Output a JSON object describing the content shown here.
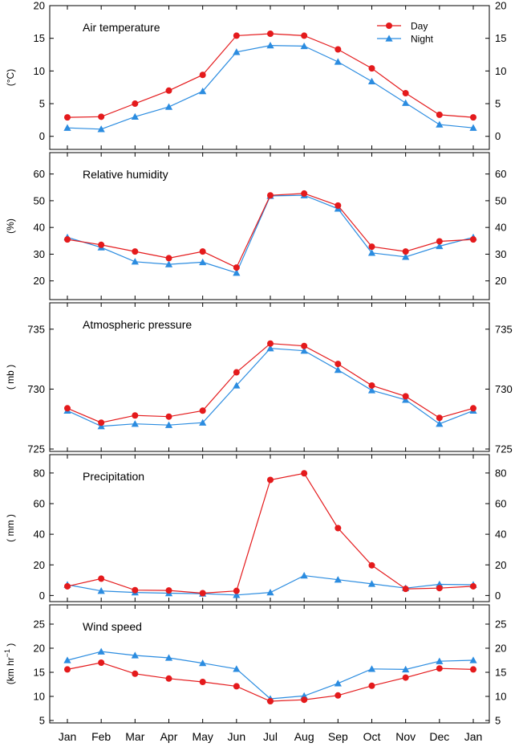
{
  "months": [
    "Jan",
    "Feb",
    "Mar",
    "Apr",
    "May",
    "Jun",
    "Jul",
    "Aug",
    "Sep",
    "Oct",
    "Nov",
    "Dec",
    "Jan"
  ],
  "legend": {
    "day": "Day",
    "night": "Night"
  },
  "colors": {
    "day": "#e41a1c",
    "night": "#2b8ce0"
  },
  "chart_data": [
    {
      "type": "line",
      "title": "Air temperature",
      "ylabel": "(°C)",
      "ylim": [
        -2,
        20
      ],
      "yticks": [
        0,
        5,
        10,
        15,
        20
      ],
      "categories": [
        "Jan",
        "Feb",
        "Mar",
        "Apr",
        "May",
        "Jun",
        "Jul",
        "Aug",
        "Sep",
        "Oct",
        "Nov",
        "Dec",
        "Jan"
      ],
      "series": [
        {
          "name": "Day",
          "values": [
            2.9,
            3.0,
            5.0,
            7.0,
            9.4,
            15.4,
            15.7,
            15.4,
            13.3,
            10.4,
            6.6,
            3.3,
            2.9
          ]
        },
        {
          "name": "Night",
          "values": [
            1.3,
            1.1,
            3.0,
            4.5,
            6.9,
            12.9,
            13.9,
            13.8,
            11.4,
            8.4,
            5.1,
            1.8,
            1.3
          ]
        }
      ]
    },
    {
      "type": "line",
      "title": "Relative humidity",
      "ylabel": "(%)",
      "ylim": [
        13,
        68
      ],
      "yticks": [
        20,
        30,
        40,
        50,
        60
      ],
      "categories": [
        "Jan",
        "Feb",
        "Mar",
        "Apr",
        "May",
        "Jun",
        "Jul",
        "Aug",
        "Sep",
        "Oct",
        "Nov",
        "Dec",
        "Jan"
      ],
      "series": [
        {
          "name": "Day",
          "values": [
            35.5,
            33.5,
            31.0,
            28.5,
            31.0,
            25.0,
            52.0,
            52.7,
            48.2,
            32.8,
            31.0,
            34.8,
            35.5
          ]
        },
        {
          "name": "Night",
          "values": [
            36.3,
            32.5,
            27.2,
            26.2,
            27.0,
            23.0,
            51.8,
            52.0,
            47.0,
            30.5,
            29.0,
            33.0,
            36.3
          ]
        }
      ]
    },
    {
      "type": "line",
      "title": "Atmospheric pressure",
      "ylabel": "( mb )",
      "ylim": [
        724.8,
        737.2
      ],
      "yticks": [
        725,
        730,
        735
      ],
      "categories": [
        "Jan",
        "Feb",
        "Mar",
        "Apr",
        "May",
        "Jun",
        "Jul",
        "Aug",
        "Sep",
        "Oct",
        "Nov",
        "Dec",
        "Jan"
      ],
      "series": [
        {
          "name": "Day",
          "values": [
            728.4,
            727.2,
            727.8,
            727.7,
            728.2,
            731.4,
            733.8,
            733.6,
            732.1,
            730.3,
            729.4,
            727.6,
            728.4
          ]
        },
        {
          "name": "Night",
          "values": [
            728.2,
            726.9,
            727.1,
            727.0,
            727.2,
            730.3,
            733.4,
            733.2,
            731.6,
            729.9,
            729.1,
            727.1,
            728.2
          ]
        }
      ]
    },
    {
      "type": "line",
      "title": "Precipitation",
      "ylabel": "( mm )",
      "ylim": [
        -4,
        92
      ],
      "yticks": [
        0,
        20,
        40,
        60,
        80
      ],
      "categories": [
        "Jan",
        "Feb",
        "Mar",
        "Apr",
        "May",
        "Jun",
        "Jul",
        "Aug",
        "Sep",
        "Oct",
        "Nov",
        "Dec",
        "Jan"
      ],
      "series": [
        {
          "name": "Day",
          "values": [
            6.0,
            11.0,
            3.5,
            3.3,
            1.5,
            3.0,
            75.5,
            79.8,
            44.0,
            19.7,
            4.3,
            4.8,
            6.0
          ]
        },
        {
          "name": "Night",
          "values": [
            7.0,
            3.0,
            2.0,
            1.5,
            1.2,
            0.3,
            2.0,
            13.0,
            10.3,
            7.6,
            4.8,
            7.3,
            7.0
          ]
        }
      ]
    },
    {
      "type": "line",
      "title": "Wind speed",
      "ylabel": "(km hr",
      "ylabel_sup": "−1",
      "ylabel_close": ")",
      "ylim": [
        4.5,
        29
      ],
      "yticks": [
        5,
        10,
        15,
        20,
        25
      ],
      "categories": [
        "Jan",
        "Feb",
        "Mar",
        "Apr",
        "May",
        "Jun",
        "Jul",
        "Aug",
        "Sep",
        "Oct",
        "Nov",
        "Dec",
        "Jan"
      ],
      "series": [
        {
          "name": "Day",
          "values": [
            15.6,
            17.0,
            14.7,
            13.7,
            13.0,
            12.1,
            9.0,
            9.3,
            10.2,
            12.2,
            13.9,
            15.8,
            15.6
          ]
        },
        {
          "name": "Night",
          "values": [
            17.5,
            19.3,
            18.5,
            18.0,
            16.9,
            15.7,
            9.5,
            10.1,
            12.7,
            15.7,
            15.6,
            17.3,
            17.5
          ]
        }
      ]
    }
  ]
}
